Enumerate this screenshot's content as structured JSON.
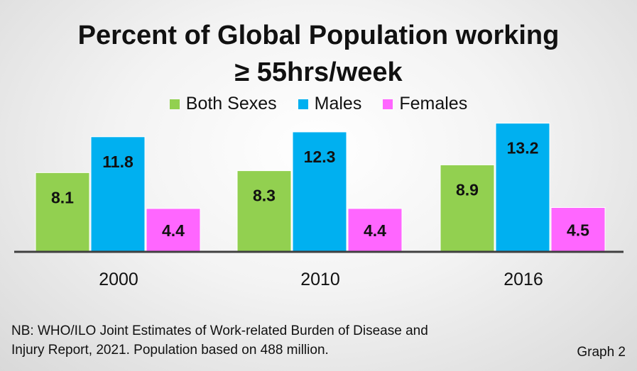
{
  "title_line1": "Percent of Global Population working",
  "title_line2": "≥ 55hrs/week",
  "chart_data": {
    "type": "bar",
    "title": "Percent of Global Population working ≥ 55hrs/week",
    "categories": [
      "2000",
      "2010",
      "2016"
    ],
    "series": [
      {
        "name": "Both Sexes",
        "color": "#92d050",
        "values": [
          8.1,
          8.3,
          8.9
        ]
      },
      {
        "name": "Males",
        "color": "#00b0f0",
        "values": [
          11.8,
          12.3,
          13.2
        ]
      },
      {
        "name": "Females",
        "color": "#ff66ff",
        "values": [
          4.4,
          4.4,
          4.5
        ]
      }
    ],
    "xlabel": "",
    "ylabel": "",
    "ylim": [
      0,
      14.2
    ],
    "legend": "top-center",
    "grid": false
  },
  "note_line1": "NB: WHO/ILO Joint Estimates of Work-related Burden of Disease and",
  "note_line2": "Injury Report, 2021. Population based on 488 million.",
  "graph_label": "Graph 2"
}
